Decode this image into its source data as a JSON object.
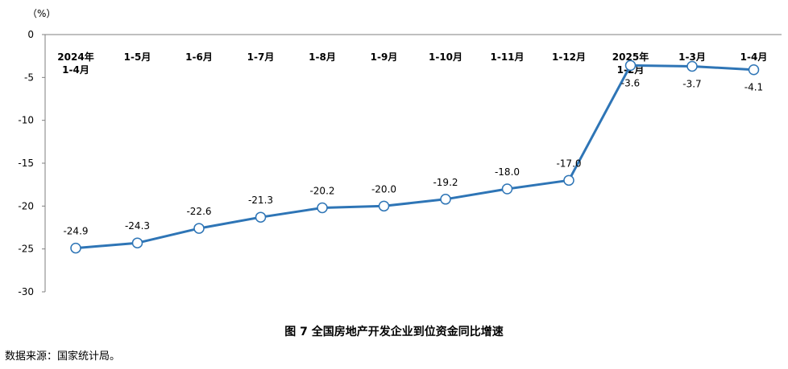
{
  "chart_data": {
    "type": "line",
    "unit_label": "（%）",
    "categories": [
      [
        "2024年",
        "1-4月"
      ],
      [
        "1-5月"
      ],
      [
        "1-6月"
      ],
      [
        "1-7月"
      ],
      [
        "1-8月"
      ],
      [
        "1-9月"
      ],
      [
        "1-10月"
      ],
      [
        "1-11月"
      ],
      [
        "1-12月"
      ],
      [
        "2025年",
        "1-2月"
      ],
      [
        "1-3月"
      ],
      [
        "1-4月"
      ]
    ],
    "series": [
      {
        "values": [
          -24.9,
          -24.3,
          -22.6,
          -21.3,
          -20.2,
          -20.0,
          -19.2,
          -18.0,
          -17.0,
          -3.6,
          -3.7,
          -4.1
        ]
      }
    ],
    "data_labels": [
      "-24.9",
      "-24.3",
      "-22.6",
      "-21.3",
      "-20.2",
      "-20.0",
      "-19.2",
      "-18.0",
      "-17.0",
      "-3.6",
      "-3.7",
      "-4.1"
    ],
    "ylim": [
      -30,
      0
    ],
    "yticks": [
      0,
      -5,
      -10,
      -15,
      -20,
      -25,
      -30
    ],
    "grid": false,
    "line_color": "#2e75b6",
    "marker_fill": "#ffffff",
    "title": "图 7 全国房地产开发企业到位资金同比增速"
  },
  "source_note": "数据来源：国家统计局。"
}
